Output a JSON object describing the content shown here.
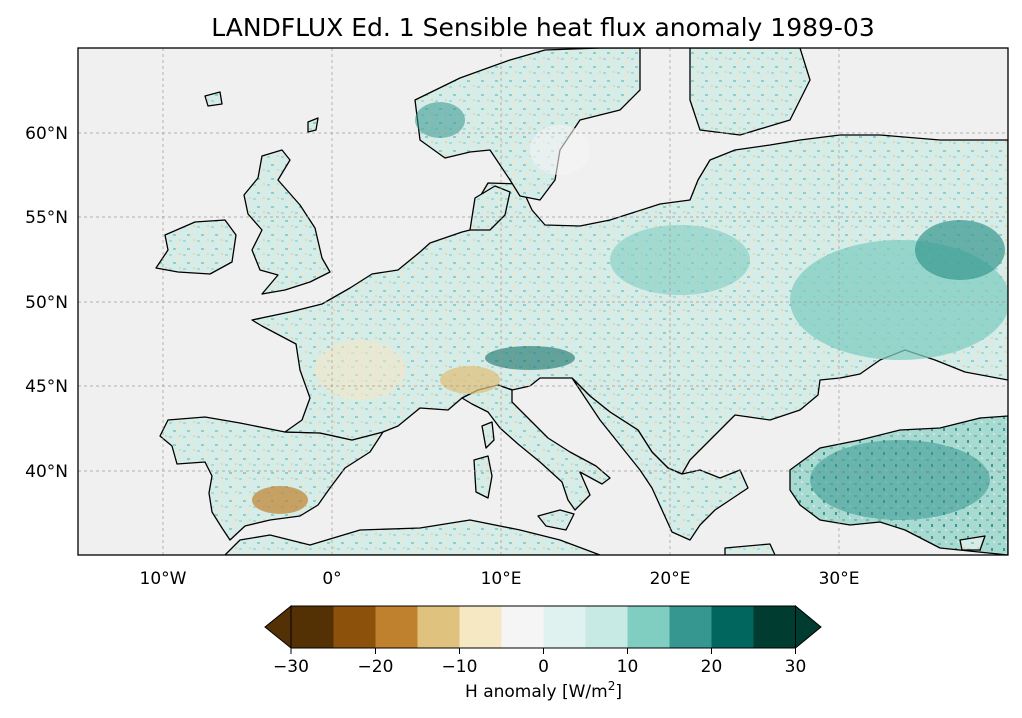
{
  "title": "LANDFLUX Ed. 1 Sensible heat flux anomaly 1989-03",
  "map": {
    "extent": {
      "lon": [
        -15,
        40
      ],
      "lat": [
        35,
        65
      ]
    },
    "lon_ticks": [
      "10°W",
      "0°",
      "10°E",
      "20°E",
      "30°E"
    ],
    "lat_ticks": [
      "60°N",
      "55°N",
      "50°N",
      "45°N",
      "40°N"
    ],
    "gridlines": true,
    "ocean_color": "#f0f0f0",
    "coastline_color": "#000000",
    "projection": "PlateCarree"
  },
  "colorbar": {
    "ticks": [
      "−30",
      "−20",
      "−10",
      "0",
      "10",
      "20",
      "30"
    ],
    "label_main": "H anomaly [W/m",
    "label_sup": "2",
    "label_end": "]",
    "colors": [
      "#543005",
      "#8c510a",
      "#bf812d",
      "#dfc27d",
      "#f6e8c3",
      "#f5f5f5",
      "#c7eae5",
      "#80cdc1",
      "#35978f",
      "#01665e",
      "#003c30"
    ],
    "extend": "both",
    "levels": [
      -30,
      -25,
      -20,
      -15,
      -10,
      -5,
      0,
      5,
      10,
      15,
      20,
      25,
      30
    ]
  }
}
